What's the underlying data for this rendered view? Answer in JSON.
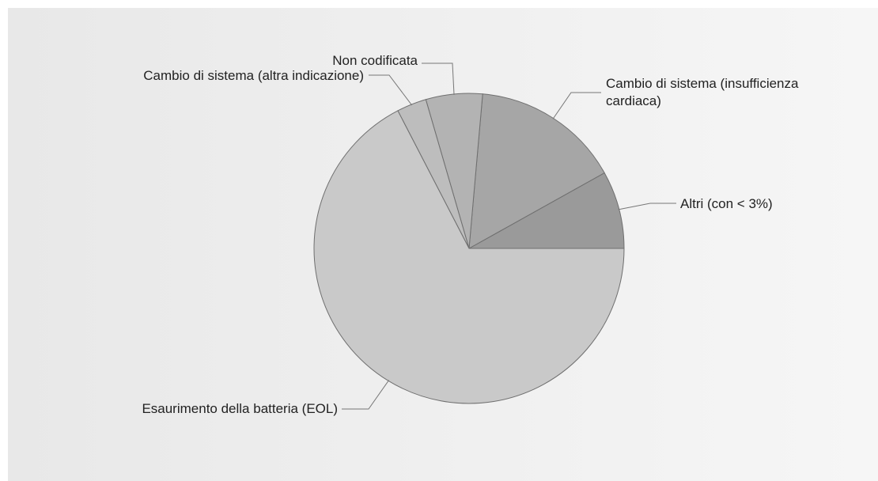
{
  "chart_data": {
    "type": "pie",
    "title": "",
    "slices": [
      {
        "label": "Altri (con < 3%)",
        "value": 8.1,
        "color": "#9a9a9a"
      },
      {
        "label": "Cambio di sistema (insufficienza cardiaca)",
        "label_lines": [
          "Cambio di sistema (insufficienza",
          "cardiaca)"
        ],
        "value": 15.5,
        "color": "#a6a6a6"
      },
      {
        "label": "Non codificata",
        "value": 5.9,
        "color": "#b3b3b3"
      },
      {
        "label": "Cambio di sistema (altra indicazione)",
        "value": 3.1,
        "color": "#bdbdbd"
      },
      {
        "label": "Esaurimento della batteria (EOL)",
        "value": 67.4,
        "color": "#c9c9c9"
      }
    ],
    "legend": "callout labels"
  }
}
